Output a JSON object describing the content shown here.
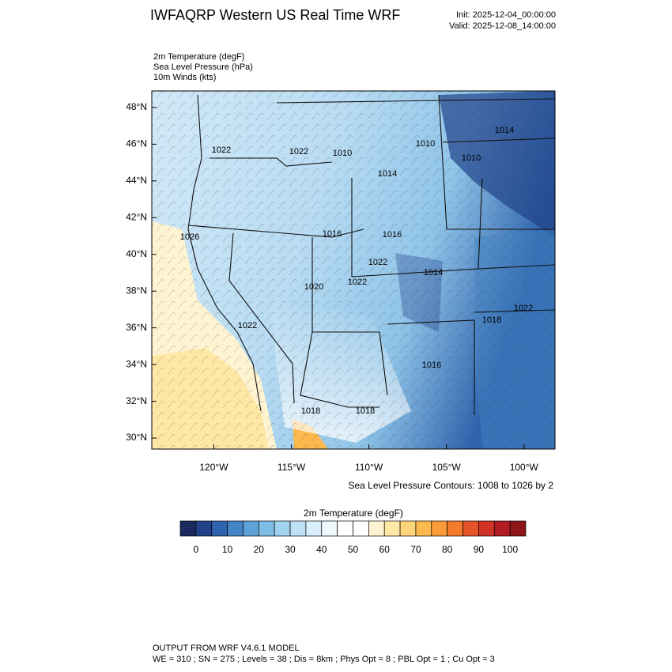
{
  "header": {
    "title": "IWFAQRP Western US Real Time WRF",
    "init": "Init: 2025-12-04_00:00:00",
    "valid": "Valid: 2025-12-08_14:00:00"
  },
  "fields": [
    "2m Temperature   (degF)",
    "Sea Level Pressure   (hPa)",
    "10m Winds   (kts)"
  ],
  "map": {
    "lonlim": [
      -124,
      -98
    ],
    "latlim": [
      29.4,
      48.9
    ],
    "lon_ticks": [
      {
        "value": -120,
        "label": "120°W"
      },
      {
        "value": -115,
        "label": "115°W"
      },
      {
        "value": -110,
        "label": "110°W"
      },
      {
        "value": -105,
        "label": "105°W"
      },
      {
        "value": -100,
        "label": "100°W"
      }
    ],
    "lat_ticks": [
      {
        "value": 30,
        "label": "30°N"
      },
      {
        "value": 32,
        "label": "32°N"
      },
      {
        "value": 34,
        "label": "34°N"
      },
      {
        "value": 36,
        "label": "36°N"
      },
      {
        "value": 38,
        "label": "38°N"
      },
      {
        "value": 40,
        "label": "40°N"
      },
      {
        "value": 42,
        "label": "42°N"
      },
      {
        "value": 44,
        "label": "44°N"
      },
      {
        "value": 46,
        "label": "46°N"
      },
      {
        "value": 48,
        "label": "48°N"
      }
    ],
    "contour_labels": [
      "1022",
      "1022",
      "1010",
      "1010",
      "1014",
      "1010",
      "1014",
      "1026",
      "1016",
      "1016",
      "1022",
      "1014",
      "1020",
      "1022",
      "1018",
      "1022",
      "1022",
      "1016",
      "1018",
      "1018"
    ],
    "contour_note": "Sea Level Pressure Contours: 1008 to 1026 by 2"
  },
  "colorbar": {
    "title": "2m Temperature  (degF)",
    "bins": [
      -5,
      0,
      5,
      10,
      15,
      20,
      25,
      30,
      35,
      40,
      45,
      50,
      55,
      60,
      65,
      70,
      75,
      80,
      85,
      90,
      95,
      100,
      105
    ],
    "colors": [
      "#1a2a5e",
      "#21438a",
      "#2f63ad",
      "#4584c4",
      "#5ea3d8",
      "#7ebde6",
      "#9fd3f0",
      "#bde2f5",
      "#d8eefa",
      "#eef8fd",
      "#ffffff",
      "#ffffff",
      "#fff4d2",
      "#ffe8a6",
      "#ffd57a",
      "#fdb94e",
      "#fb9c38",
      "#f47a2c",
      "#e5532a",
      "#d03226",
      "#b11d22",
      "#8e1518"
    ],
    "ticks": [
      0,
      10,
      20,
      30,
      40,
      50,
      60,
      70,
      80,
      90,
      100
    ]
  },
  "footer": {
    "line1": "OUTPUT FROM WRF V4.6.1 MODEL",
    "line2": "WE = 310 ; SN = 275 ; Levels = 38 ; Dis = 8km ; Phys Opt = 8 ; PBL Opt = 1 ; Cu Opt = 3"
  }
}
